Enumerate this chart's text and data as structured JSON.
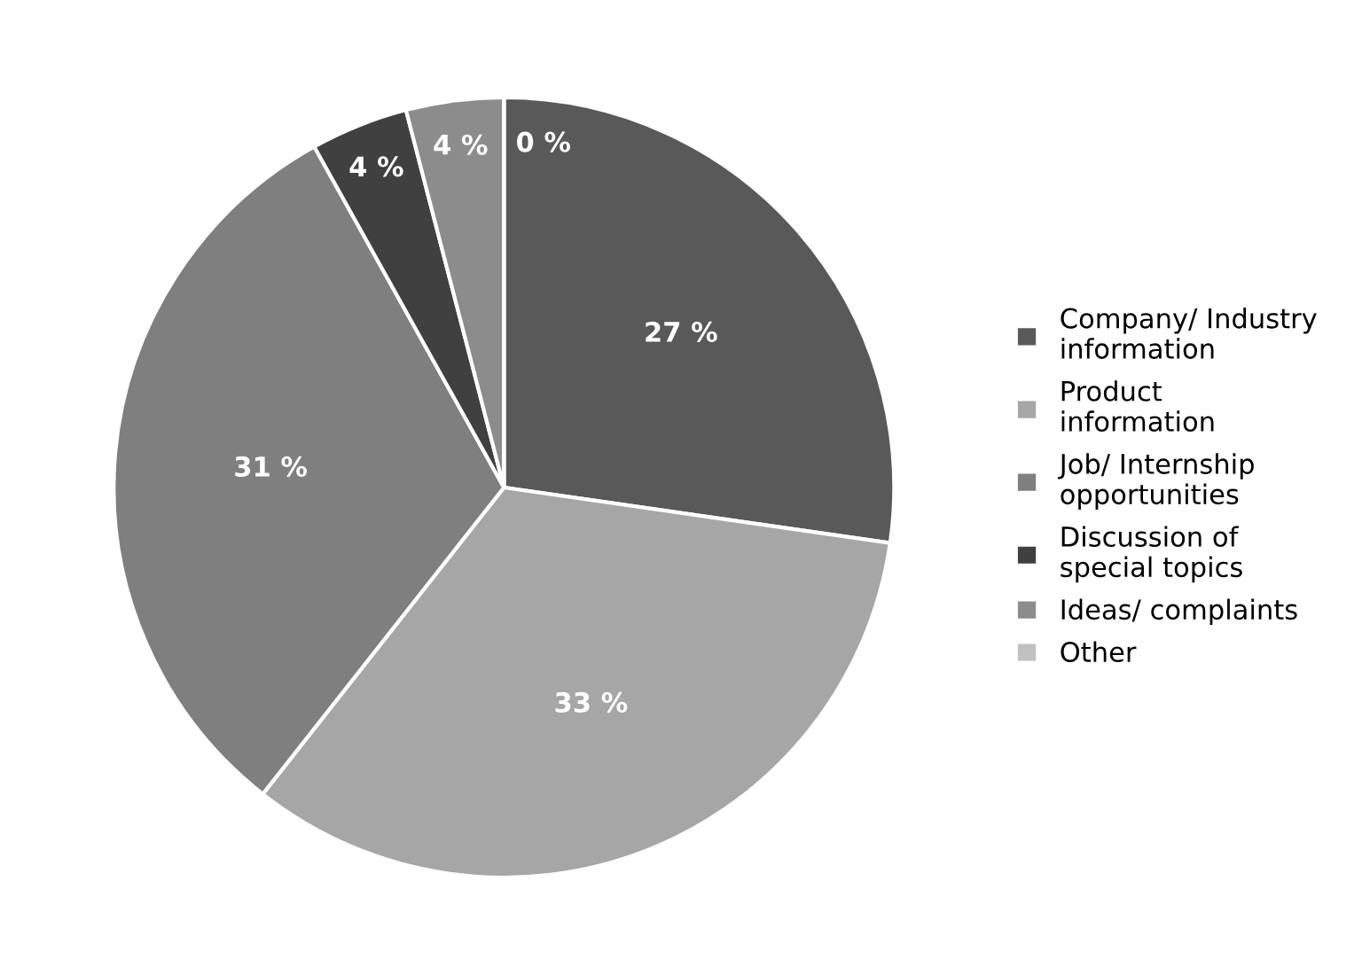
{
  "chart_data": {
    "type": "pie",
    "categories": [
      "Company/ Industry\ninformation",
      "Product\ninformation",
      "Job/ Internship\nopportunities",
      "Discussion of\nspecial topics",
      "Ideas/ complaints",
      "Other"
    ],
    "values": [
      27,
      33,
      31,
      4,
      4,
      0
    ],
    "value_labels": [
      "27 %",
      "33 %",
      "31 %",
      "4 %",
      "4 %",
      "0 %"
    ],
    "colors": [
      "#595959",
      "#a6a6a6",
      "#7f7f7f",
      "#404040",
      "#8c8c8c",
      "#c0c0c0"
    ],
    "legend": "right"
  }
}
